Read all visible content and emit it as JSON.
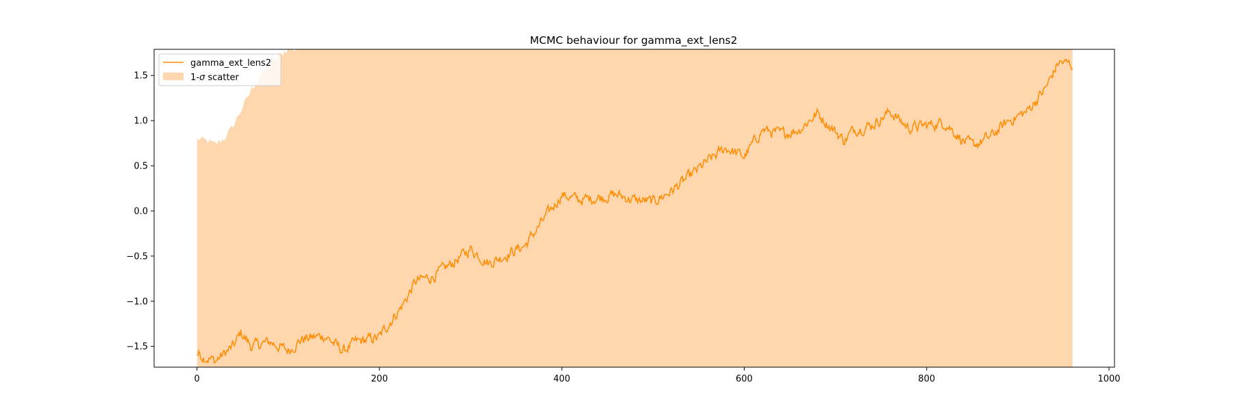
{
  "chart_data": {
    "type": "line",
    "title": "MCMC behaviour for gamma_ext_lens2",
    "xlabel": "",
    "ylabel": "",
    "xlim": [
      -47,
      1006
    ],
    "ylim": [
      -1.73,
      1.79
    ],
    "x_ticks": [
      0,
      200,
      400,
      600,
      800,
      1000
    ],
    "x_tick_labels": [
      "0",
      "200",
      "400",
      "600",
      "800",
      "1000"
    ],
    "y_ticks": [
      -1.5,
      -1.0,
      -0.5,
      0.0,
      0.5,
      1.0,
      1.5
    ],
    "y_tick_labels": [
      "−1.5",
      "−1.0",
      "−0.5",
      "0.0",
      "0.5",
      "1.0",
      "1.5"
    ],
    "grid": false,
    "legend_position": "upper left",
    "colors": {
      "line": "#ff8c00",
      "band": "#ffa64d",
      "band_opacity": 0.45
    },
    "series": [
      {
        "name": "gamma_ext_lens2",
        "kind": "line",
        "step": 1,
        "anchors": {
          "x": [
            0,
            10,
            20,
            30,
            40,
            48,
            60,
            80,
            100,
            115,
            140,
            160,
            175,
            200,
            210,
            225,
            240,
            260,
            280,
            300,
            320,
            340,
            360,
            380,
            400,
            420,
            440,
            460,
            480,
            500,
            520,
            540,
            560,
            580,
            600,
            620,
            640,
            660,
            680,
            690,
            700,
            710,
            720,
            740,
            760,
            780,
            800,
            820,
            840,
            850,
            870,
            890,
            910,
            930,
            945,
            960
          ],
          "y": [
            -1.58,
            -1.62,
            -1.66,
            -1.58,
            -1.5,
            -1.35,
            -1.5,
            -1.45,
            -1.55,
            -1.42,
            -1.38,
            -1.55,
            -1.45,
            -1.4,
            -1.25,
            -1.05,
            -0.78,
            -0.72,
            -0.58,
            -0.42,
            -0.58,
            -0.48,
            -0.38,
            -0.1,
            0.18,
            0.12,
            0.15,
            0.18,
            0.12,
            0.1,
            0.22,
            0.38,
            0.55,
            0.7,
            0.6,
            0.9,
            0.85,
            0.9,
            1.08,
            0.98,
            0.88,
            0.78,
            0.9,
            0.95,
            1.1,
            0.92,
            0.95,
            0.98,
            0.78,
            0.72,
            0.82,
            1.0,
            1.1,
            1.35,
            1.65,
            1.62
          ]
        },
        "noise": 0.04
      },
      {
        "name": "1-σ scatter",
        "kind": "band",
        "upper_anchors": {
          "x": [
            0,
            10,
            20,
            30,
            40,
            50,
            60,
            70,
            80,
            90,
            100,
            110,
            960
          ],
          "y": [
            0.8,
            0.78,
            0.74,
            0.8,
            0.95,
            1.15,
            1.35,
            1.5,
            1.62,
            1.72,
            1.79,
            1.79,
            1.79
          ]
        },
        "lower": -1.73
      }
    ],
    "legend": [
      {
        "label": "gamma_ext_lens2",
        "symbol": "line"
      },
      {
        "label_prefix": "1-",
        "label_sigma": "σ",
        "label_suffix": " scatter",
        "symbol": "patch"
      }
    ]
  }
}
